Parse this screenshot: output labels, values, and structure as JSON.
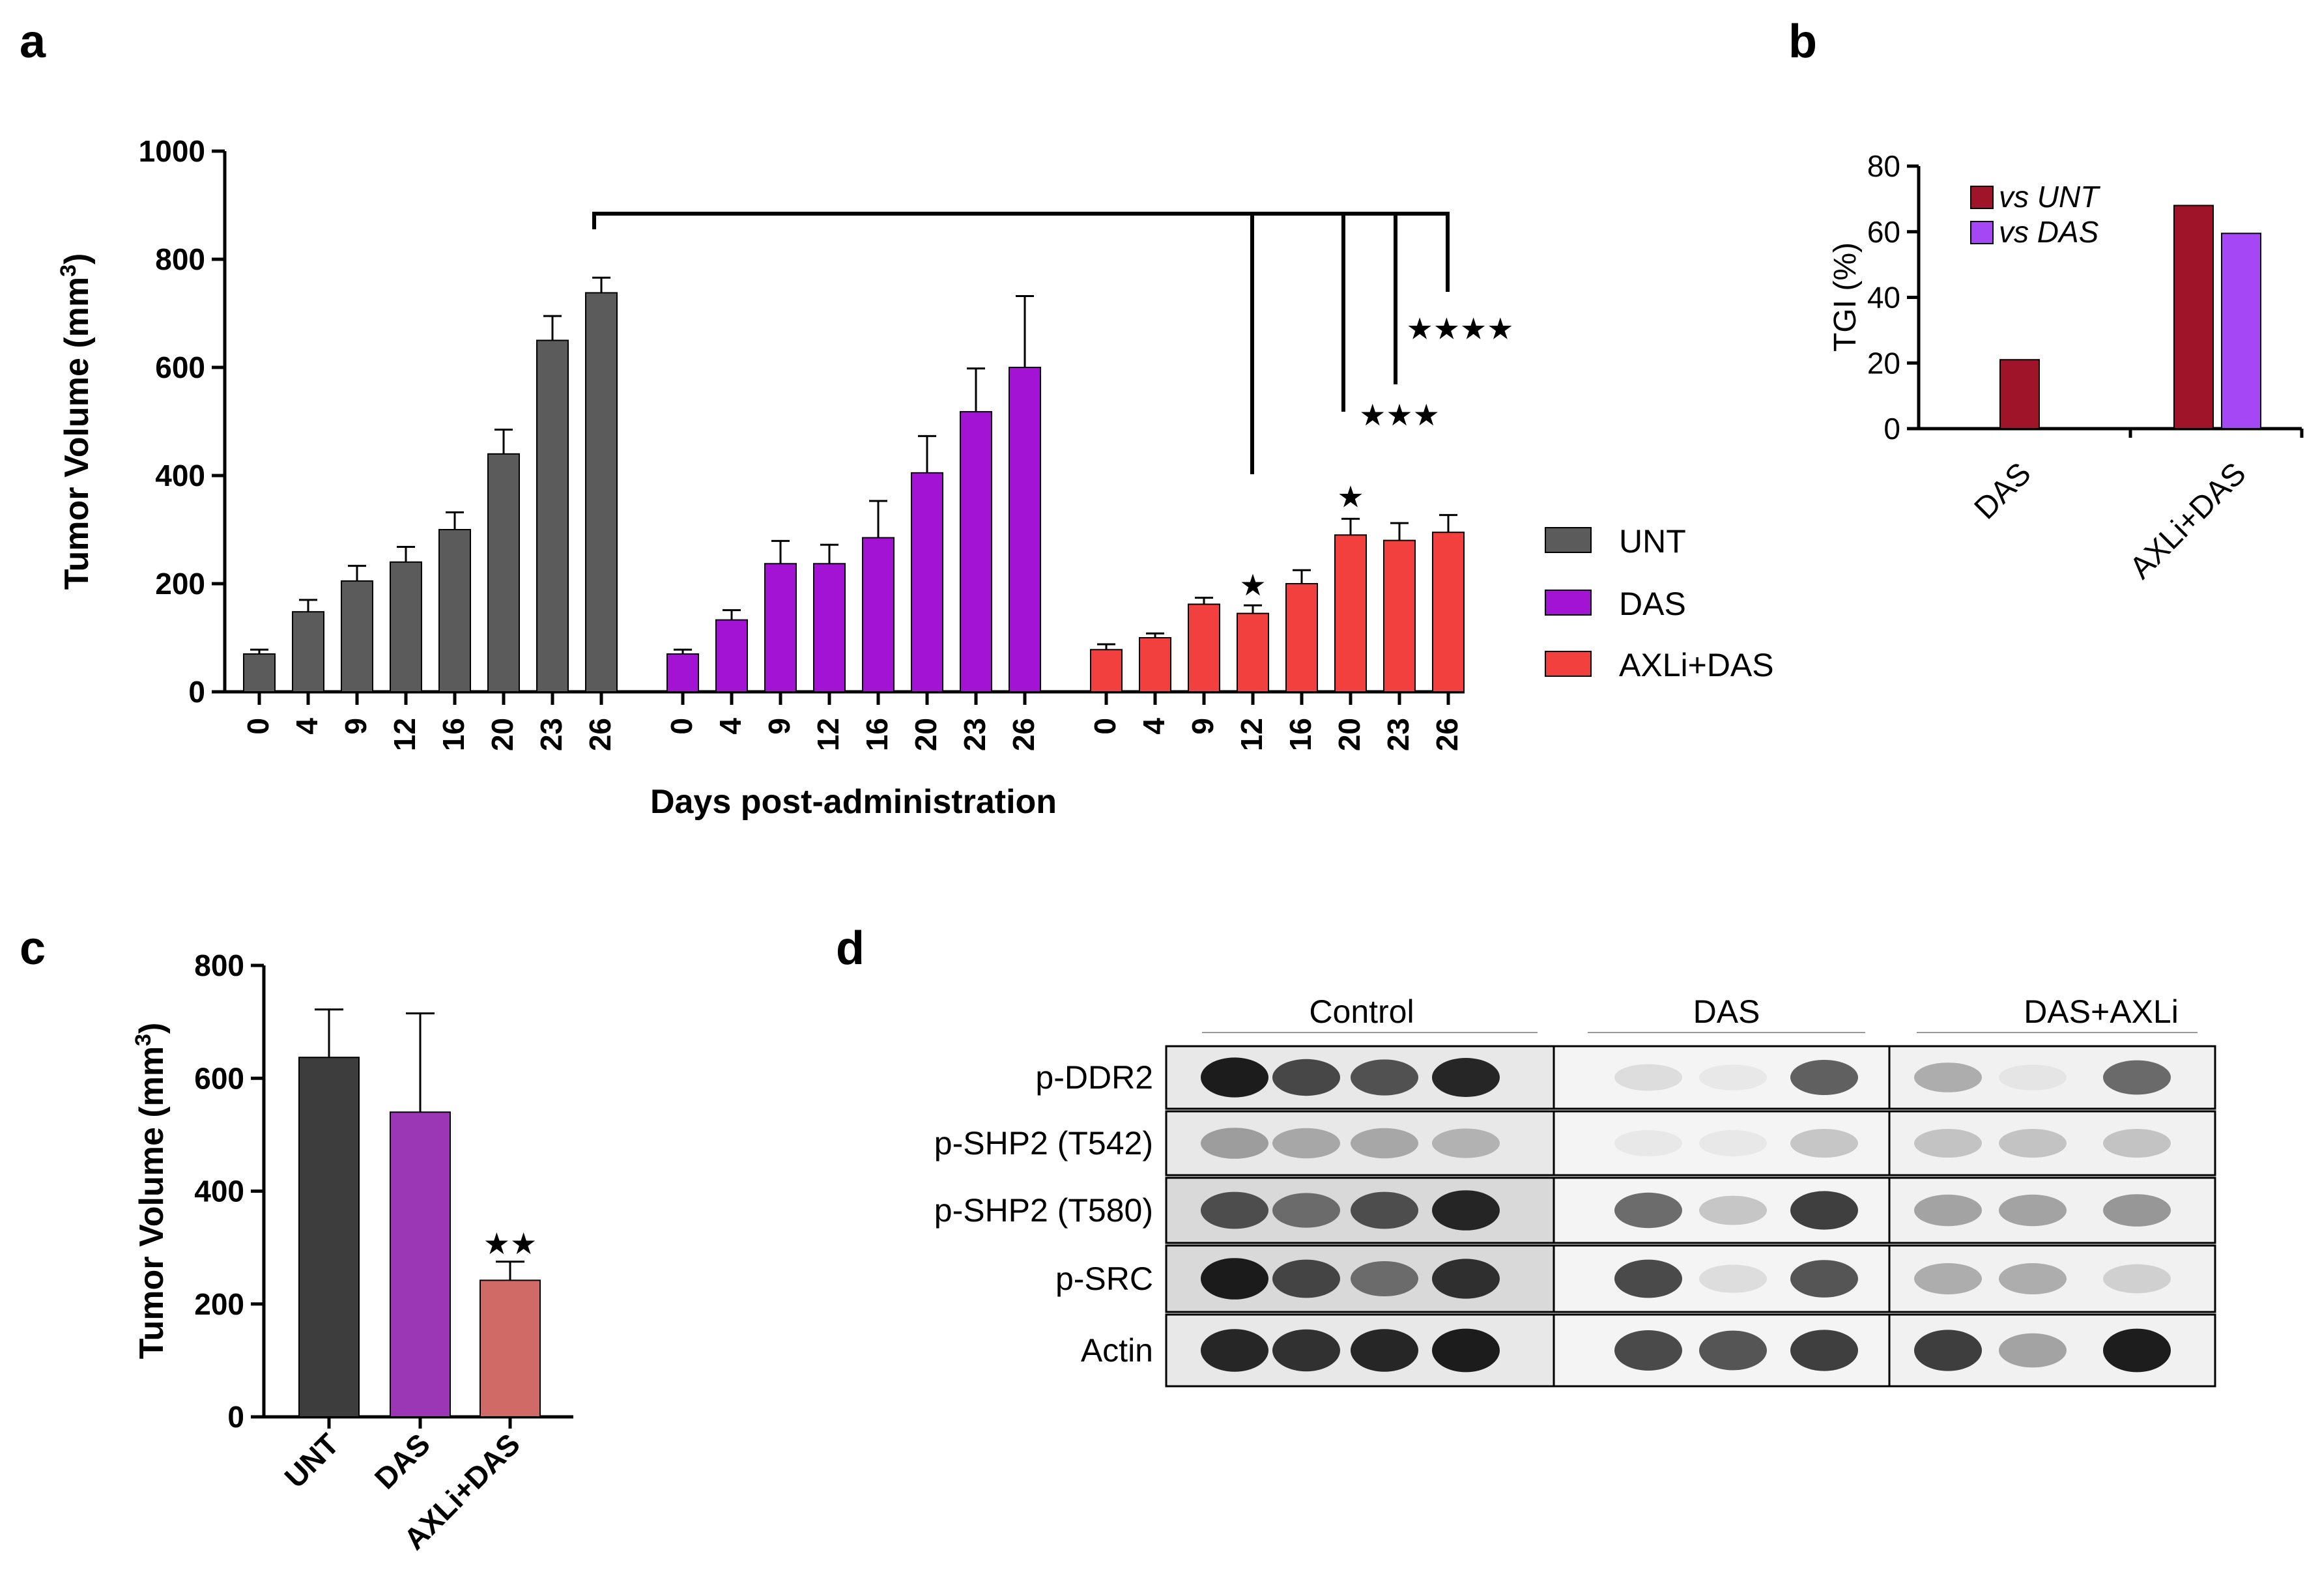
{
  "panels": {
    "a": "a",
    "b": "b",
    "c": "c",
    "d": "d"
  },
  "colors": {
    "UNT": "#5b5b5b",
    "DAS": "#a213d4",
    "AXLi+DAS": "#f2403e",
    "vs_UNT": "#a0142a",
    "vs_DAS": "#a547f5",
    "c_UNT": "#3d3d3d",
    "c_DAS": "#9b36b5",
    "c_AXLi": "#d06a66"
  },
  "chart_data": [
    {
      "panel": "a",
      "type": "bar",
      "ylabel": "Tumor Volume (mm3)",
      "xlabel": "Days post-administration",
      "ylim": [
        0,
        1000
      ],
      "yticks": [
        0,
        200,
        400,
        600,
        800,
        1000
      ],
      "categories": [
        "0",
        "4",
        "9",
        "12",
        "16",
        "20",
        "23",
        "26"
      ],
      "series": [
        {
          "name": "UNT",
          "values": [
            70,
            148,
            205,
            240,
            300,
            440,
            650,
            738
          ],
          "errors": [
            8,
            22,
            28,
            28,
            32,
            45,
            45,
            28
          ]
        },
        {
          "name": "DAS",
          "values": [
            70,
            133,
            237,
            237,
            285,
            405,
            518,
            600
          ],
          "errors": [
            8,
            18,
            42,
            35,
            68,
            68,
            80,
            132
          ]
        },
        {
          "name": "AXLi+DAS",
          "values": [
            78,
            100,
            162,
            145,
            200,
            290,
            280,
            295
          ],
          "errors": [
            10,
            8,
            12,
            15,
            25,
            30,
            32,
            32
          ]
        }
      ],
      "annotations": [
        {
          "day": "12",
          "label": "★"
        },
        {
          "day": "20",
          "label": "★"
        },
        {
          "day": "23",
          "label": "★★★"
        },
        {
          "day": "26",
          "label": "★★★★"
        }
      ],
      "legend": [
        "UNT",
        "DAS",
        "AXLi+DAS"
      ]
    },
    {
      "panel": "b",
      "type": "bar",
      "ylabel": "TGI (%)",
      "ylim": [
        0,
        80
      ],
      "yticks": [
        0,
        20,
        40,
        60,
        80
      ],
      "categories": [
        "DAS",
        "AXLi+DAS"
      ],
      "series": [
        {
          "name": "vs UNT",
          "values": [
            21,
            68
          ]
        },
        {
          "name": "vs DAS",
          "values": [
            null,
            59.5
          ]
        }
      ],
      "legend": [
        "vs UNT",
        "vs DAS"
      ]
    },
    {
      "panel": "c",
      "type": "bar",
      "ylabel": "Tumor Volume (mm3)",
      "ylim": [
        0,
        800
      ],
      "yticks": [
        0,
        200,
        400,
        600,
        800
      ],
      "categories": [
        "UNT",
        "DAS",
        "AXLi+DAS"
      ],
      "values": [
        637,
        540,
        242
      ],
      "errors": [
        85,
        175,
        33
      ],
      "annotations": [
        {
          "category": "AXLi+DAS",
          "label": "★★"
        }
      ]
    }
  ],
  "western_blot": {
    "groups": [
      "Control",
      "DAS",
      "DAS+AXLi"
    ],
    "rows": [
      "p-DDR2",
      "p-SHP2 (T542)",
      "p-SHP2 (T580)",
      "p-SRC",
      "Actin"
    ],
    "intensities": [
      [
        0.95,
        0.75,
        0.7,
        0.9,
        0.1,
        0.05,
        0.65,
        0.3,
        0.05,
        0.6
      ],
      [
        0.35,
        0.3,
        0.3,
        0.25,
        0.05,
        0.05,
        0.2,
        0.2,
        0.2,
        0.2
      ],
      [
        0.7,
        0.55,
        0.7,
        0.9,
        0.6,
        0.2,
        0.8,
        0.35,
        0.35,
        0.4
      ],
      [
        0.95,
        0.75,
        0.55,
        0.85,
        0.75,
        0.1,
        0.7,
        0.3,
        0.3,
        0.15
      ],
      [
        0.9,
        0.85,
        0.9,
        0.95,
        0.75,
        0.7,
        0.8,
        0.8,
        0.35,
        0.95
      ]
    ]
  }
}
